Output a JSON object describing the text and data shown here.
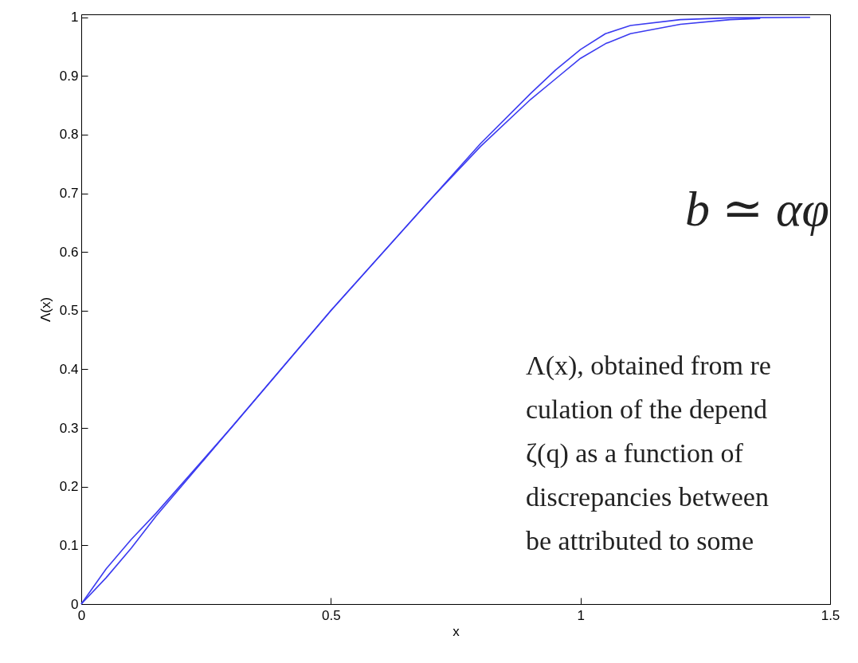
{
  "chart_data": {
    "type": "line",
    "xlabel": "x",
    "ylabel": "Λ(x)",
    "xlim": [
      0,
      1.5
    ],
    "ylim": [
      0,
      1.005
    ],
    "xticks": [
      0,
      0.5,
      1,
      1.5
    ],
    "yticks": [
      0,
      0.1,
      0.2,
      0.3,
      0.4,
      0.5,
      0.6,
      0.7,
      0.8,
      0.9,
      1
    ],
    "grid": false,
    "legend": false,
    "marker": "none",
    "line_style": "solid",
    "series": [
      {
        "color": "#3b3bf0",
        "x": [
          0,
          0.05,
          0.1,
          0.15,
          0.3,
          0.5,
          0.7,
          0.8,
          0.9,
          0.95,
          1.0,
          1.05,
          1.1,
          1.2,
          1.3,
          1.46
        ],
        "values": [
          0,
          0.06,
          0.11,
          0.155,
          0.3,
          0.5,
          0.69,
          0.785,
          0.87,
          0.91,
          0.945,
          0.972,
          0.986,
          0.996,
          0.999,
          1
        ]
      },
      {
        "color": "#3b3bf0",
        "x": [
          0,
          0.05,
          0.1,
          0.15,
          0.3,
          0.5,
          0.7,
          0.8,
          0.9,
          0.95,
          1.0,
          1.05,
          1.1,
          1.2,
          1.3,
          1.36
        ],
        "values": [
          0,
          0.045,
          0.095,
          0.15,
          0.3,
          0.5,
          0.69,
          0.78,
          0.86,
          0.895,
          0.93,
          0.955,
          0.972,
          0.988,
          0.996,
          0.998
        ]
      }
    ],
    "annotations": [
      "b ≃ αφ",
      "Λ(x), obtained from re",
      "culation of the depend",
      "ζ(q) as a function of",
      "discrepancies between",
      "be attributed to some"
    ]
  }
}
